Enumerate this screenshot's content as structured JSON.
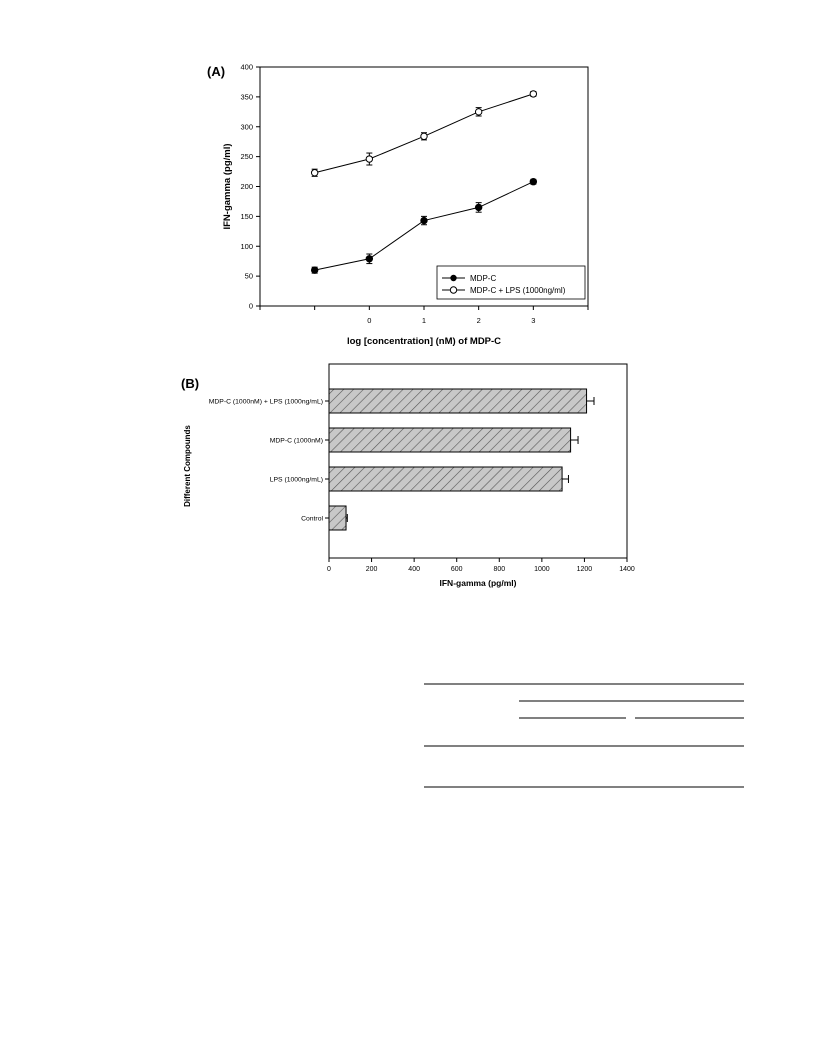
{
  "chart_data": [
    {
      "type": "line",
      "panel_label": "(A)",
      "xlabel": "log [concentration] (nM) of MDP-C",
      "ylabel": "IFN-gamma (pg/ml)",
      "x": [
        -1,
        0,
        1,
        2,
        3
      ],
      "xticks": [
        "0",
        "1",
        "2",
        "3"
      ],
      "xtick_values": [
        0,
        1,
        2,
        3
      ],
      "xlim": [
        -2,
        4
      ],
      "ylim": [
        0,
        400
      ],
      "yticks": [
        "0",
        "50",
        "100",
        "150",
        "200",
        "250",
        "300",
        "350",
        "400"
      ],
      "ytick_values": [
        0,
        50,
        100,
        150,
        200,
        250,
        300,
        350,
        400
      ],
      "legend_position": "bottom-right",
      "grid": false,
      "series": [
        {
          "name": "MDP-C",
          "marker": "filled-circle",
          "values": [
            60,
            79,
            143,
            165,
            208
          ],
          "errors": [
            5,
            8,
            7,
            8,
            4
          ]
        },
        {
          "name": "MDP-C + LPS (1000ng/ml)",
          "marker": "open-circle",
          "values": [
            223,
            246,
            284,
            325,
            355
          ],
          "errors": [
            6,
            10,
            6,
            7,
            4
          ]
        }
      ]
    },
    {
      "type": "bar",
      "orientation": "horizontal",
      "panel_label": "(B)",
      "xlabel": "IFN-gamma (pg/ml)",
      "ylabel": "Different Compounds",
      "categories": [
        "MDP-C (1000nM) + LPS (1000ng/mL)",
        "MDP-C (1000nM)",
        "LPS (1000ng/mL)",
        "Control"
      ],
      "values": [
        1210,
        1135,
        1095,
        80
      ],
      "errors": [
        35,
        35,
        30,
        6
      ],
      "xlim": [
        0,
        1400
      ],
      "xticks": [
        "0",
        "200",
        "400",
        "600",
        "800",
        "1000",
        "1200",
        "1400"
      ],
      "xtick_values": [
        0,
        200,
        400,
        600,
        800,
        1000,
        1200,
        1400
      ],
      "bar_fill": "diagonal-hatch",
      "bar_color": "#c8c8c8",
      "grid": false
    }
  ],
  "colors": {
    "axis": "#000000",
    "hatch_background": "#c8c8c8",
    "hatch_line": "#555555"
  }
}
